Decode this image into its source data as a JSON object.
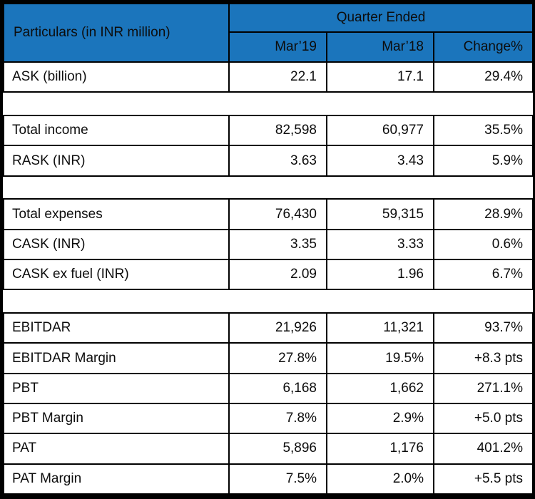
{
  "table": {
    "header": {
      "particulars_label": "Particulars (in INR million)",
      "group_label": "Quarter Ended",
      "columns": [
        "Mar’19",
        "Mar’18",
        "Change%"
      ]
    },
    "rows": [
      {
        "type": "data",
        "label": "ASK (billion)",
        "mar19": "22.1",
        "mar18": "17.1",
        "change": "29.4%"
      },
      {
        "type": "spacer"
      },
      {
        "type": "data",
        "label": "Total income",
        "mar19": "82,598",
        "mar18": "60,977",
        "change": "35.5%"
      },
      {
        "type": "data",
        "label": "RASK (INR)",
        "mar19": "3.63",
        "mar18": "3.43",
        "change": "5.9%"
      },
      {
        "type": "spacer"
      },
      {
        "type": "data",
        "label": "Total expenses",
        "mar19": "76,430",
        "mar18": "59,315",
        "change": "28.9%"
      },
      {
        "type": "data",
        "label": "CASK (INR)",
        "mar19": "3.35",
        "mar18": "3.33",
        "change": "0.6%"
      },
      {
        "type": "data",
        "label": "CASK ex fuel (INR)",
        "mar19": "2.09",
        "mar18": "1.96",
        "change": "6.7%"
      },
      {
        "type": "spacer"
      },
      {
        "type": "data",
        "label": "EBITDAR",
        "mar19": "21,926",
        "mar18": "11,321",
        "change": "93.7%"
      },
      {
        "type": "data",
        "label": "EBITDAR Margin",
        "mar19": "27.8%",
        "mar18": "19.5%",
        "change": "+8.3 pts"
      },
      {
        "type": "data",
        "label": "PBT",
        "mar19": "6,168",
        "mar18": "1,662",
        "change": "271.1%"
      },
      {
        "type": "data",
        "label": "PBT Margin",
        "mar19": "7.8%",
        "mar18": "2.9%",
        "change": "+5.0 pts"
      },
      {
        "type": "data",
        "label": "PAT",
        "mar19": "5,896",
        "mar18": "1,176",
        "change": "401.2%"
      },
      {
        "type": "data",
        "label": "PAT Margin",
        "mar19": "7.5%",
        "mar18": "2.0%",
        "change": "+5.5 pts"
      }
    ],
    "colors": {
      "header_bg": "#1b75bc",
      "header_text": "#ffffff",
      "grid_border": "#000000",
      "body_text": "#0d0d0d",
      "background": "#ffffff"
    }
  },
  "chart_data": {
    "type": "table",
    "title": "Quarter Ended",
    "columns": [
      "Particulars (in INR million)",
      "Mar’19",
      "Mar’18",
      "Change%"
    ],
    "rows": [
      [
        "ASK (billion)",
        "22.1",
        "17.1",
        "29.4%"
      ],
      [
        "Total income",
        "82,598",
        "60,977",
        "35.5%"
      ],
      [
        "RASK (INR)",
        "3.63",
        "3.43",
        "5.9%"
      ],
      [
        "Total expenses",
        "76,430",
        "59,315",
        "28.9%"
      ],
      [
        "CASK (INR)",
        "3.35",
        "3.33",
        "0.6%"
      ],
      [
        "CASK ex fuel (INR)",
        "2.09",
        "1.96",
        "6.7%"
      ],
      [
        "EBITDAR",
        "21,926",
        "11,321",
        "93.7%"
      ],
      [
        "EBITDAR Margin",
        "27.8%",
        "19.5%",
        "+8.3 pts"
      ],
      [
        "PBT",
        "6,168",
        "1,662",
        "271.1%"
      ],
      [
        "PBT Margin",
        "7.8%",
        "2.9%",
        "+5.0 pts"
      ],
      [
        "PAT",
        "5,896",
        "1,176",
        "401.2%"
      ],
      [
        "PAT Margin",
        "7.5%",
        "2.0%",
        "+5.5 pts"
      ]
    ]
  }
}
